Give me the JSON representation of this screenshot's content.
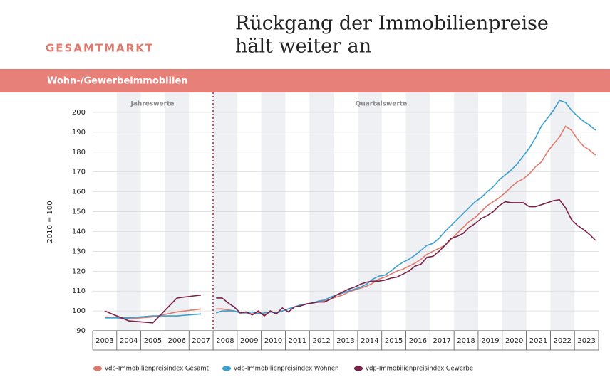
{
  "header": {
    "kicker": "GESAMTMARKT",
    "title": [
      "Rückgang der Immobilienpreise",
      "hält weiter an"
    ]
  },
  "chart_data": {
    "type": "line",
    "title": "Wohn-/Gewerbeimmobilien",
    "y_label": "2010 = 100",
    "sections": [
      "Jahreswerte",
      "Quartalswerte"
    ],
    "categories": [
      "2003",
      "2004",
      "2005",
      "2006",
      "2007",
      "2008",
      "2009",
      "2010",
      "2011",
      "2012",
      "2013",
      "2014",
      "2015",
      "2016",
      "2017",
      "2018",
      "2019",
      "2020",
      "2021",
      "2022",
      "2023"
    ],
    "ylim": [
      90,
      210
    ],
    "yticks": [
      90,
      100,
      110,
      120,
      130,
      140,
      150,
      160,
      170,
      180,
      190,
      200
    ],
    "grid": true,
    "legend": "bottom",
    "series": [
      {
        "name": "vdp-Immobilienpreisindex Gesamt",
        "color": "#e07a6e",
        "annual": [
          97,
          96,
          97,
          99.5,
          101
        ],
        "quarterly": [
          101,
          101,
          100.5,
          100,
          99,
          99,
          98.5,
          99,
          98,
          99.5,
          99,
          100,
          101,
          102,
          103,
          103.5,
          104,
          104.5,
          105,
          106,
          107,
          108,
          109.5,
          110.5,
          111.5,
          112.5,
          114,
          116,
          117,
          118.5,
          120,
          121,
          122.5,
          124,
          126,
          128.5,
          130,
          131.5,
          133,
          136,
          139,
          142,
          145,
          147,
          150,
          153,
          155,
          157,
          159.5,
          162.5,
          165,
          166.5,
          169,
          172.5,
          175,
          180,
          184,
          187.5,
          193,
          191,
          186.5,
          183,
          181,
          178.5
        ]
      },
      {
        "name": "vdp-Immobilienpreisindex Wohnen",
        "color": "#3b9fcf",
        "annual": [
          96.5,
          96.5,
          97.5,
          97.5,
          98.5
        ],
        "quarterly": [
          99,
          100,
          100,
          100,
          99,
          99,
          99.5,
          98.5,
          99,
          99.5,
          99,
          100,
          101,
          102,
          103,
          103.5,
          104,
          105,
          105.5,
          107,
          108,
          109,
          110,
          111,
          112,
          113.5,
          116,
          117.5,
          118,
          120,
          122.5,
          124.5,
          126,
          128,
          130.5,
          133,
          134,
          136.5,
          140,
          143,
          146,
          149,
          152,
          155,
          157,
          160,
          162.5,
          166,
          168.5,
          171,
          174,
          178,
          182,
          187,
          193,
          197,
          201,
          206,
          205,
          201,
          198,
          195.5,
          193.5,
          191
        ]
      },
      {
        "name": "vdp-Immobilienpreisindex Gewerbe",
        "color": "#7a2148",
        "annual": [
          100,
          95,
          94,
          106.5,
          108
        ],
        "quarterly": [
          106.5,
          106.5,
          104,
          102,
          99,
          99.5,
          98,
          100,
          97.5,
          100,
          98.5,
          101.5,
          99.5,
          102,
          102.5,
          103.5,
          104,
          104.5,
          104.5,
          106,
          108,
          109.5,
          111,
          112,
          113.5,
          114.5,
          115,
          115,
          115.5,
          116.5,
          117,
          118.5,
          120,
          122.5,
          123.5,
          127,
          127.5,
          130,
          133,
          136.5,
          137.5,
          139,
          142,
          144,
          146.5,
          148,
          150,
          153,
          155,
          154.5,
          154.5,
          154.5,
          152.5,
          152.5,
          153.5,
          154.5,
          155.5,
          156,
          152,
          146,
          143,
          141,
          138.5,
          135.5
        ]
      }
    ]
  }
}
